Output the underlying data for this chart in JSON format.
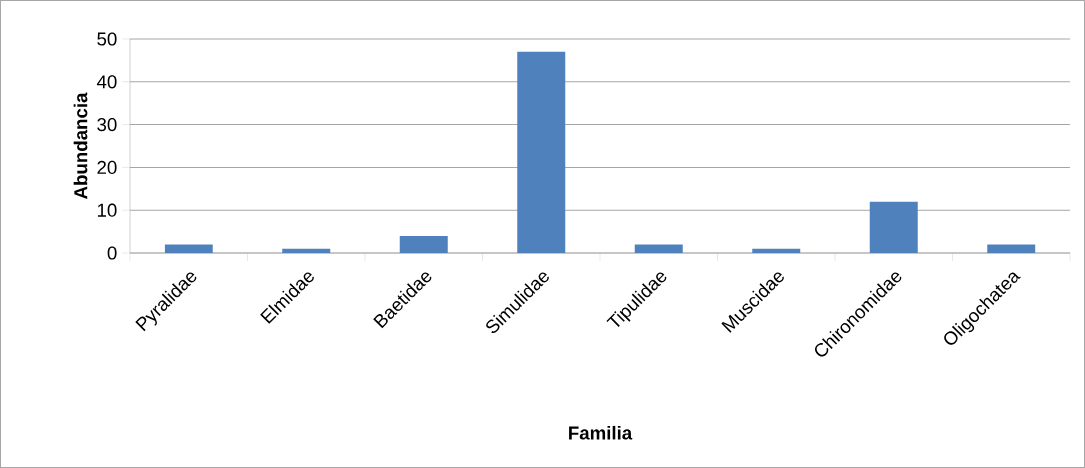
{
  "chart_data": {
    "type": "bar",
    "xlabel": "Familia",
    "ylabel": "Abundancia",
    "categories": [
      "Pyralidae",
      "Elmidae",
      "Baetidae",
      "Simulidae",
      "Tipulidae",
      "Muscidae",
      "Chironomidae",
      "Oligochatea"
    ],
    "values": [
      2,
      1,
      4,
      47,
      2,
      1,
      12,
      2
    ],
    "color": "#4f81bd",
    "ylim": [
      0,
      50
    ],
    "yticks": [
      0,
      10,
      20,
      30,
      40,
      50
    ],
    "grid": "y"
  }
}
